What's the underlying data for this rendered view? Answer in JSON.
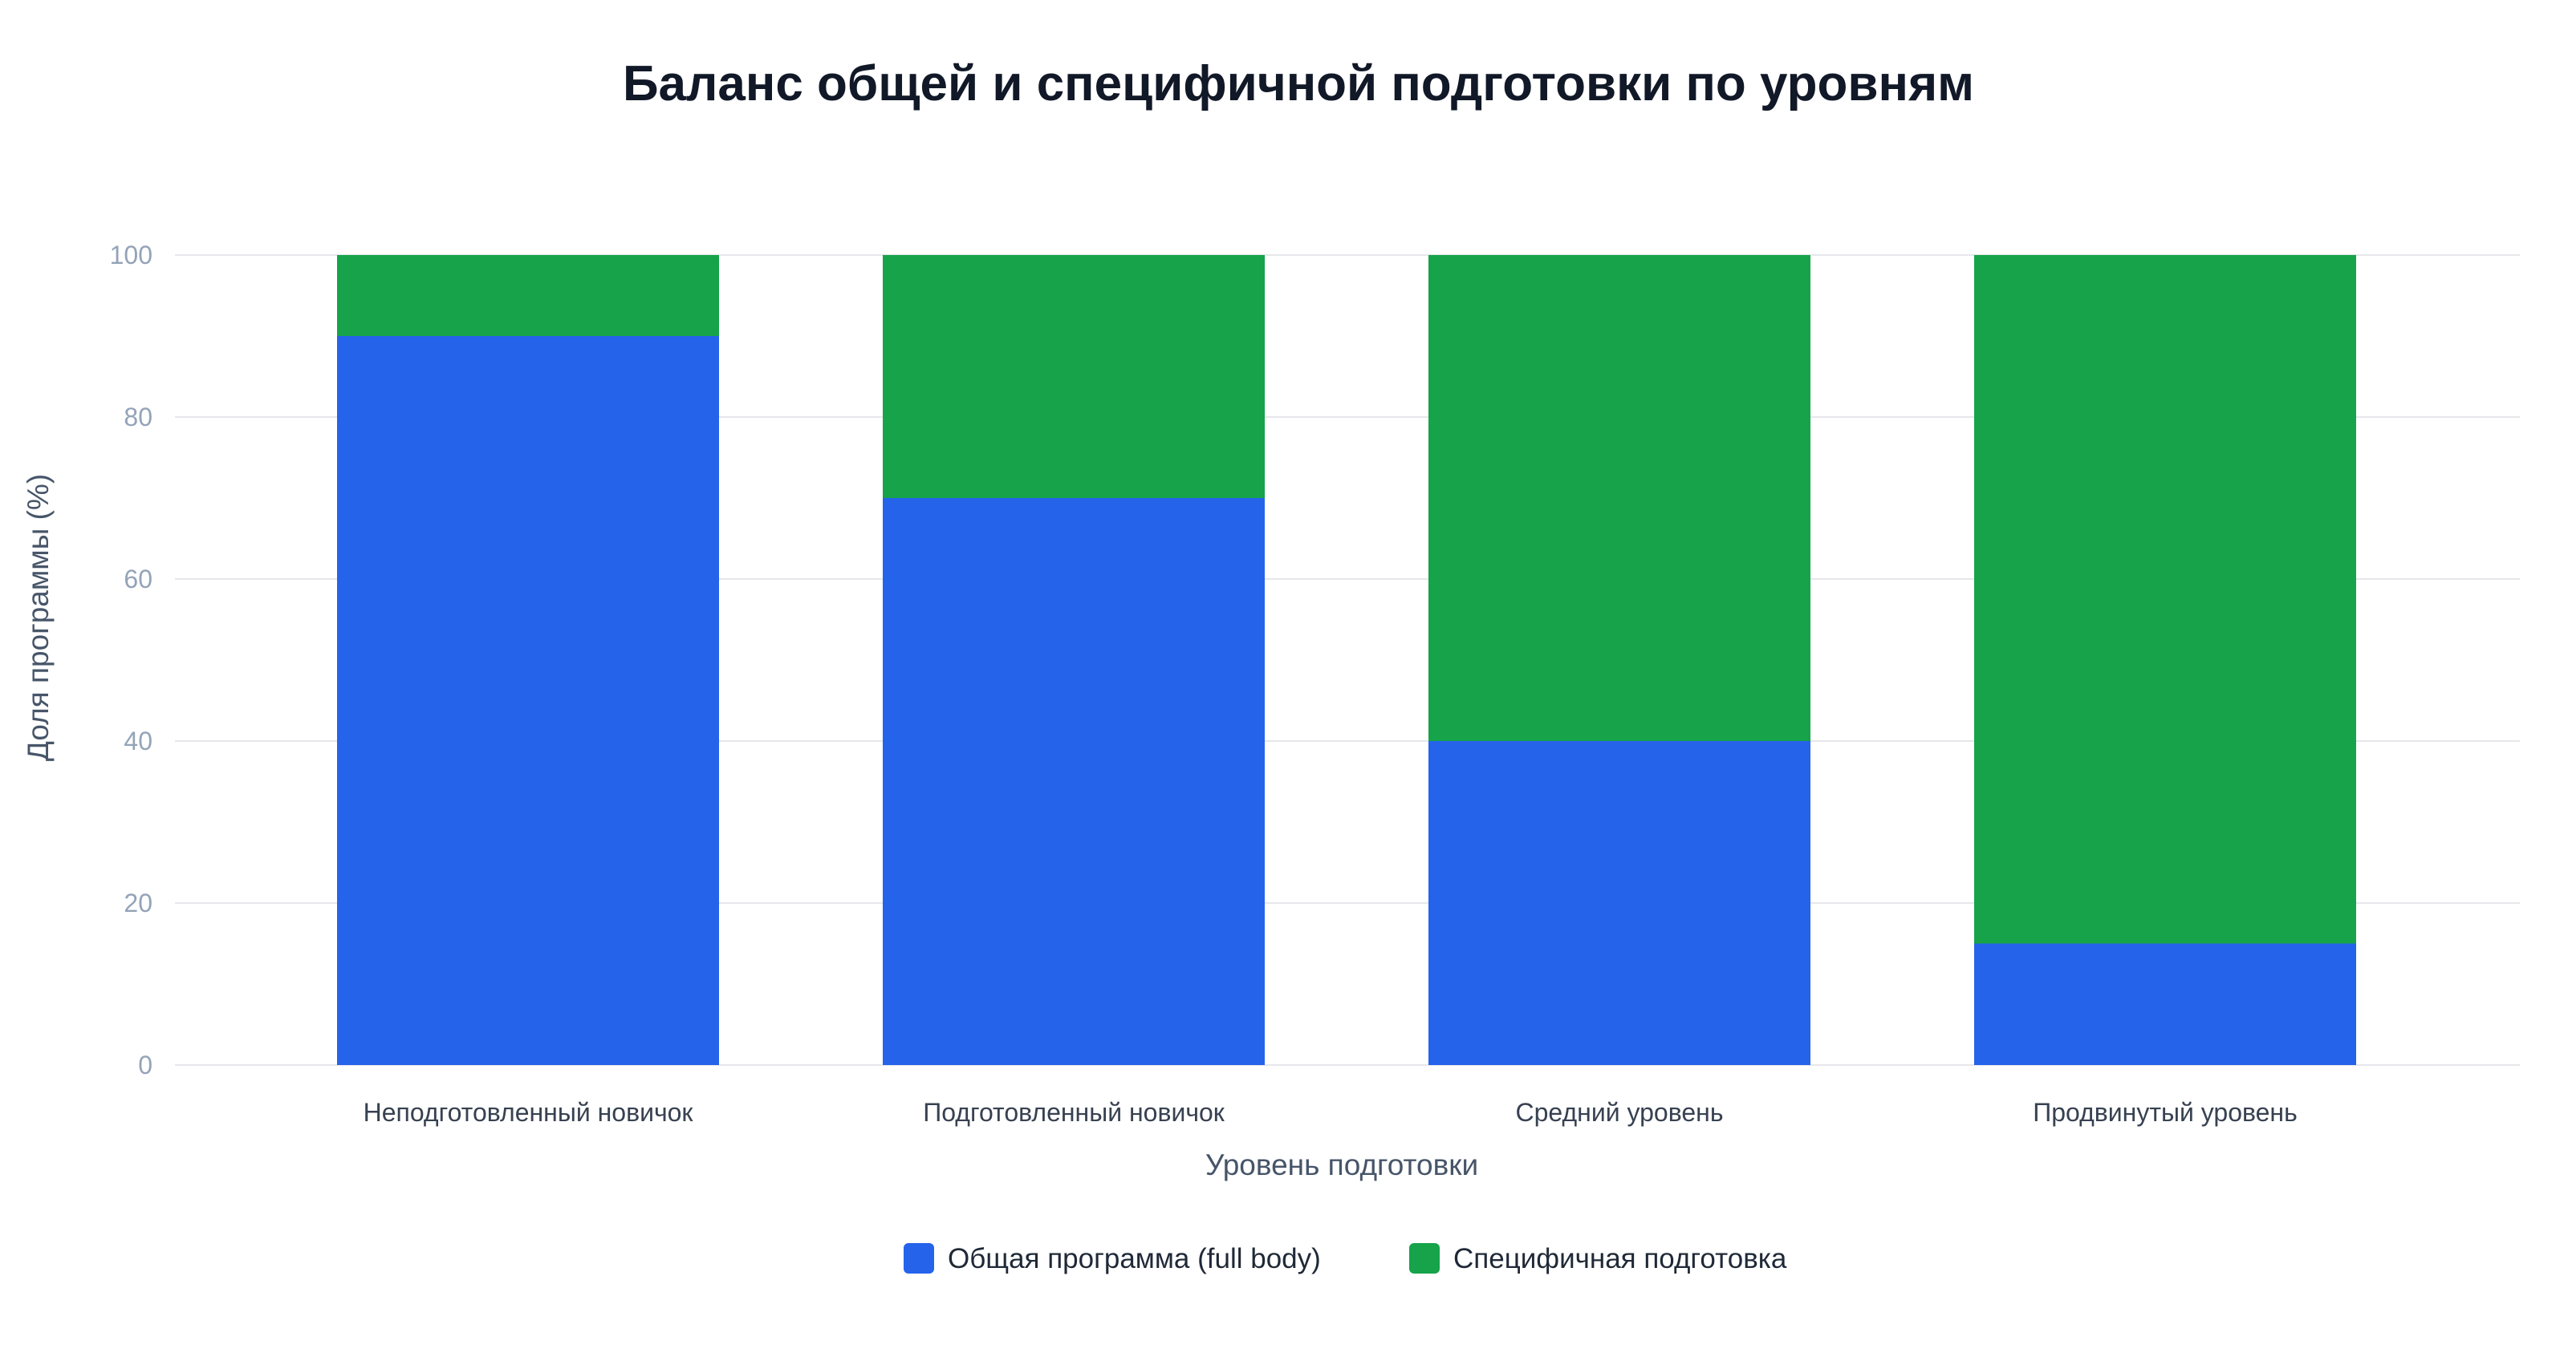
{
  "chart_data": {
    "type": "bar",
    "stacked": true,
    "title": "Баланс общей и специфичной подготовки по уровням",
    "xlabel": "Уровень подготовки",
    "ylabel": "Доля программы (%)",
    "ylim": [
      0,
      100
    ],
    "yticks": [
      0,
      20,
      40,
      60,
      80,
      100
    ],
    "grid": true,
    "legend_position": "bottom",
    "categories": [
      "Неподготовленный новичок",
      "Подготовленный новичок",
      "Средний уровень",
      "Продвинутый уровень"
    ],
    "series": [
      {
        "name": "Общая программа (full body)",
        "color": "#2563eb",
        "values": [
          90,
          70,
          40,
          15
        ]
      },
      {
        "name": "Специфичная подготовка",
        "color": "#16a34a",
        "values": [
          10,
          30,
          60,
          85
        ]
      }
    ]
  }
}
